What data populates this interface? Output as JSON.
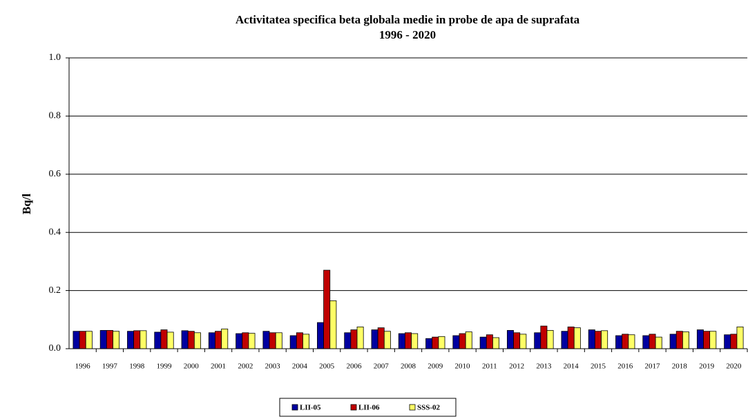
{
  "chart_data": {
    "type": "bar",
    "title": "Activitatea specifica beta globala medie in probe de apa de suprafata",
    "subtitle": "1996 - 2020",
    "y_label": "Bq/l",
    "categories": [
      "1996",
      "1997",
      "1998",
      "1999",
      "2000",
      "2001",
      "2002",
      "2003",
      "2004",
      "2005",
      "2006",
      "2007",
      "2008",
      "2009",
      "2010",
      "2011",
      "2012",
      "2013",
      "2014",
      "2015",
      "2016",
      "2017",
      "2018",
      "2019",
      "2020"
    ],
    "series": [
      {
        "name": "LII-05",
        "color": "#0000a0",
        "values": [
          0.06,
          0.063,
          0.06,
          0.057,
          0.062,
          0.055,
          0.052,
          0.06,
          0.045,
          0.09,
          0.055,
          0.065,
          0.052,
          0.035,
          0.045,
          0.04,
          0.063,
          0.055,
          0.06,
          0.065,
          0.045,
          0.045,
          0.05,
          0.065,
          0.048
        ]
      },
      {
        "name": "LII-06",
        "color": "#c00000",
        "values": [
          0.06,
          0.063,
          0.062,
          0.065,
          0.06,
          0.06,
          0.055,
          0.055,
          0.055,
          0.27,
          0.065,
          0.072,
          0.055,
          0.04,
          0.052,
          0.048,
          0.055,
          0.078,
          0.075,
          0.06,
          0.05,
          0.05,
          0.06,
          0.06,
          0.05
        ]
      },
      {
        "name": "SSS-02",
        "color": "#ffff66",
        "values": [
          0.06,
          0.06,
          0.062,
          0.057,
          0.055,
          0.068,
          0.053,
          0.055,
          0.05,
          0.165,
          0.075,
          0.06,
          0.052,
          0.042,
          0.058,
          0.038,
          0.05,
          0.063,
          0.072,
          0.062,
          0.048,
          0.04,
          0.058,
          0.06,
          0.075
        ]
      }
    ],
    "ylim": [
      0,
      1
    ],
    "yticks": [
      {
        "value": 0,
        "label": "0.0"
      },
      {
        "value": 0.2,
        "label": "0.2"
      },
      {
        "value": 0.4,
        "label": "0.4"
      },
      {
        "value": 0.6,
        "label": "0.6"
      },
      {
        "value": 0.8,
        "label": "0.8"
      },
      {
        "value": 1,
        "label": "1.0"
      }
    ],
    "grid": true,
    "legend": "bottom"
  }
}
